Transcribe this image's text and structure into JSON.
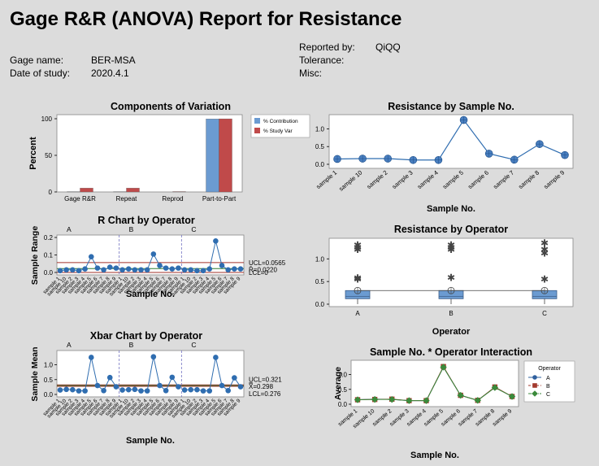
{
  "report": {
    "title": "Gage R&R (ANOVA) Report for Resistance",
    "gage_name_label": "Gage name:",
    "gage_name": "BER-MSA",
    "date_label": "Date of study:",
    "date": "2020.4.1",
    "reported_by_label": "Reported by:",
    "reported_by": "QiQQ",
    "tolerance_label": "Tolerance:",
    "misc_label": "Misc:"
  },
  "samples": [
    "sample 1",
    "sample 10",
    "sample 2",
    "sample 3",
    "sample 4",
    "sample 5",
    "sample 6",
    "sample 7",
    "sample 8",
    "sample 9"
  ],
  "chart_data": [
    {
      "id": "components",
      "type": "bar",
      "title": "Components of Variation",
      "ylabel": "Percent",
      "categories": [
        "Gage R&R",
        "Repeat",
        "Reprod",
        "Part-to-Part"
      ],
      "series": [
        {
          "name": "% Contribution",
          "color": "#6b9bd1",
          "values": [
            0.3,
            0.3,
            0.0,
            99.7
          ]
        },
        {
          "name": "% Study Var",
          "color": "#c04a4a",
          "values": [
            5.2,
            5.2,
            0.5,
            99.9
          ]
        }
      ],
      "ylim": [
        0,
        100
      ],
      "yticks": [
        0,
        50,
        100
      ]
    },
    {
      "id": "by_sample",
      "type": "line",
      "title": "Resistance by Sample No.",
      "xlabel": "Sample No.",
      "values": [
        0.15,
        0.16,
        0.16,
        0.12,
        0.12,
        1.25,
        0.3,
        0.13,
        0.57,
        0.26
      ],
      "ylim": [
        0,
        1.4
      ],
      "yticks": [
        0.0,
        0.5,
        1.0
      ]
    },
    {
      "id": "r_chart",
      "type": "line",
      "title": "R Chart by Operator",
      "ylabel": "Sample Range",
      "xlabel": "Sample No.",
      "operators": [
        "A",
        "B",
        "C"
      ],
      "values": [
        [
          0.01,
          0.015,
          0.015,
          0.01,
          0.02,
          0.09,
          0.025,
          0.015,
          0.03,
          0.025
        ],
        [
          0.015,
          0.02,
          0.015,
          0.015,
          0.015,
          0.105,
          0.04,
          0.025,
          0.02,
          0.025
        ],
        [
          0.015,
          0.015,
          0.01,
          0.01,
          0.02,
          0.18,
          0.04,
          0.015,
          0.02,
          0.02
        ]
      ],
      "ucl": 0.0565,
      "center": 0.022,
      "lcl": 0,
      "ucl_label": "UCL=0.0565",
      "center_label": "R̄=0.0220",
      "lcl_label": "LCL=0",
      "ylim": [
        0,
        0.2
      ],
      "yticks": [
        "0.0",
        "0.1",
        "0.2"
      ]
    },
    {
      "id": "xbar_chart",
      "type": "line",
      "title": "Xbar Chart by Operator",
      "ylabel": "Sample Mean",
      "xlabel": "Sample No.",
      "operators": [
        "A",
        "B",
        "C"
      ],
      "values": [
        [
          0.15,
          0.17,
          0.16,
          0.12,
          0.12,
          1.25,
          0.3,
          0.13,
          0.57,
          0.26
        ],
        [
          0.15,
          0.16,
          0.17,
          0.12,
          0.12,
          1.27,
          0.3,
          0.13,
          0.58,
          0.26
        ],
        [
          0.15,
          0.16,
          0.16,
          0.12,
          0.12,
          1.25,
          0.3,
          0.13,
          0.56,
          0.26
        ]
      ],
      "ucl": 0.321,
      "center": 0.298,
      "lcl": 0.276,
      "ucl_label": "UCL=0.321",
      "center_label": "X̿=0.298",
      "lcl_label": "LCL=0.276",
      "ylim": [
        0,
        1.4
      ],
      "yticks": [
        "0.0",
        "0.5",
        "1.0"
      ]
    },
    {
      "id": "by_operator",
      "type": "box",
      "title": "Resistance by Operator",
      "xlabel": "Operator",
      "categories": [
        "A",
        "B",
        "C"
      ],
      "boxes": [
        {
          "q1": 0.12,
          "median": 0.17,
          "q3": 0.3,
          "mean": 0.3,
          "outliers": [
            0.55,
            0.57,
            1.2,
            1.25,
            1.3
          ]
        },
        {
          "q1": 0.12,
          "median": 0.17,
          "q3": 0.3,
          "mean": 0.3,
          "outliers": [
            0.58,
            1.2,
            1.25,
            1.3
          ]
        },
        {
          "q1": 0.12,
          "median": 0.17,
          "q3": 0.3,
          "mean": 0.3,
          "outliers": [
            0.55,
            1.12,
            1.2,
            1.35
          ]
        }
      ],
      "ylim": [
        0,
        1.4
      ],
      "yticks": [
        "0.0",
        "0.5",
        "1.0"
      ]
    },
    {
      "id": "interaction",
      "type": "line",
      "title": "Sample No. * Operator Interaction",
      "ylabel": "Average",
      "xlabel": "Sample No.",
      "legend_title": "Operator",
      "series": [
        {
          "name": "A",
          "color": "#2e5f9e",
          "marker": "circle",
          "values": [
            0.15,
            0.17,
            0.16,
            0.12,
            0.12,
            1.25,
            0.3,
            0.13,
            0.57,
            0.26
          ]
        },
        {
          "name": "B",
          "color": "#a33a2e",
          "marker": "square",
          "values": [
            0.15,
            0.16,
            0.17,
            0.12,
            0.12,
            1.27,
            0.3,
            0.13,
            0.58,
            0.26
          ]
        },
        {
          "name": "C",
          "color": "#3b8a3b",
          "marker": "diamond",
          "values": [
            0.15,
            0.16,
            0.16,
            0.12,
            0.12,
            1.25,
            0.3,
            0.13,
            0.56,
            0.26
          ]
        }
      ],
      "ylim": [
        0,
        1.4
      ],
      "yticks": [
        "0.0",
        "0.5",
        "1.0"
      ]
    }
  ]
}
